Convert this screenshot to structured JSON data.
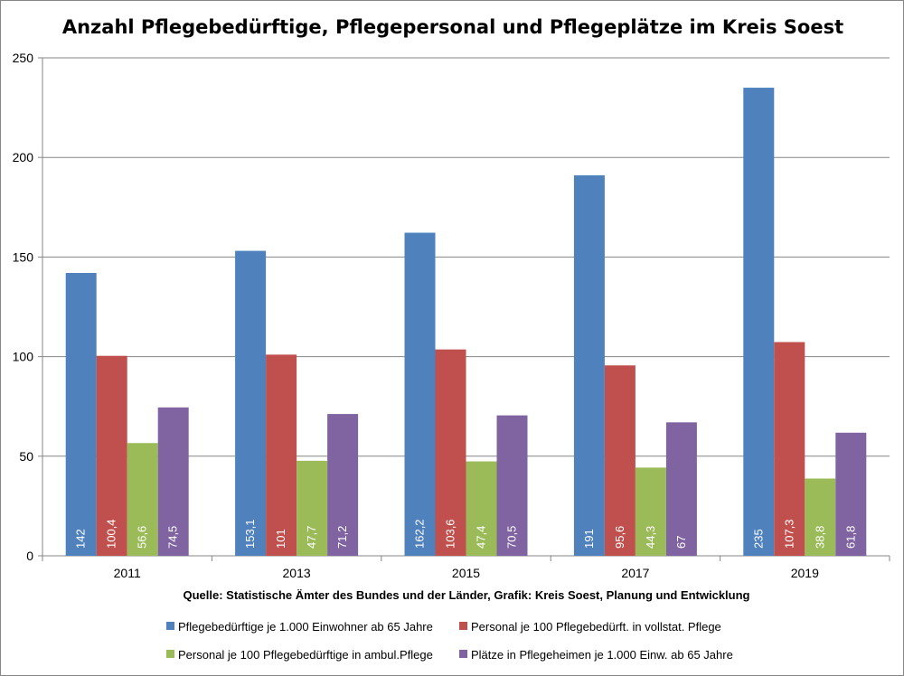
{
  "chart_data": {
    "type": "bar",
    "title": "Anzahl Pflegebedürftige, Pflegepersonal und Pflegeplätze im Kreis Soest",
    "source": "Quelle: Statistische Ämter des Bundes und der Länder, Grafik: Kreis Soest, Planung und Entwicklung",
    "categories": [
      "2011",
      "2013",
      "2015",
      "2017",
      "2019"
    ],
    "ylim": [
      0,
      250
    ],
    "yticks": [
      "0",
      "50",
      "100",
      "150",
      "200",
      "250"
    ],
    "ytick_values": [
      0,
      50,
      100,
      150,
      200,
      250
    ],
    "grid": true,
    "legend_position": "bottom",
    "series": [
      {
        "name": "Pflegebedürftige je 1.000 Einwohner ab 65 Jahre",
        "color": "#4F81BD",
        "values": [
          142,
          153.1,
          162.2,
          191,
          235
        ],
        "labels": [
          "142",
          "153,1",
          "162,2",
          "191",
          "235"
        ]
      },
      {
        "name": "Personal je 100 Pflegebedürft. in vollstat. Pflege",
        "color": "#C0504D",
        "values": [
          100.4,
          101,
          103.6,
          95.6,
          107.3
        ],
        "labels": [
          "100,4",
          "101",
          "103,6",
          "95,6",
          "107,3"
        ]
      },
      {
        "name": "Personal je 100 Pflegebedürftige in ambul.Pflege",
        "color": "#9BBB59",
        "values": [
          56.6,
          47.7,
          47.4,
          44.3,
          38.8
        ],
        "labels": [
          "56,6",
          "47,7",
          "47,4",
          "44,3",
          "38,8"
        ]
      },
      {
        "name": "Plätze in Pflegeheimen je 1.000 Einw. ab 65 Jahre",
        "color": "#8064A2",
        "values": [
          74.5,
          71.2,
          70.5,
          67,
          61.8
        ],
        "labels": [
          "74,5",
          "71,2",
          "70,5",
          "67",
          "61,8"
        ]
      }
    ]
  }
}
